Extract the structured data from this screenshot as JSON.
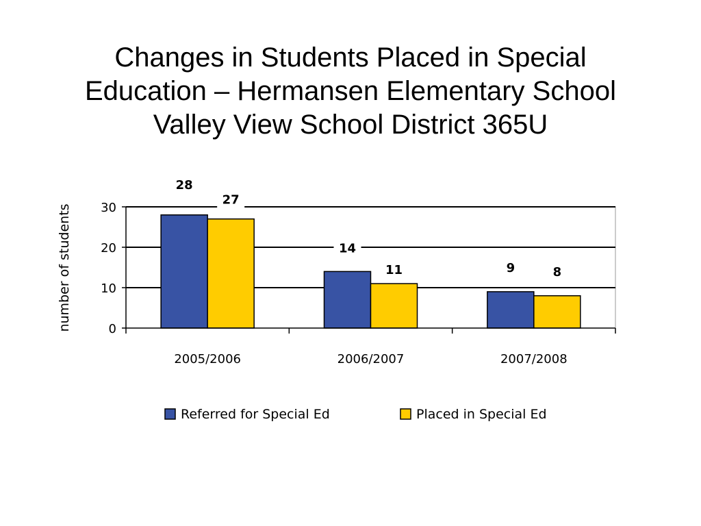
{
  "slide": {
    "title_lines": [
      "Changes in Students Placed in Special",
      "Education – Hermansen Elementary School",
      "Valley View School District 365U"
    ]
  },
  "chart_data": {
    "type": "bar",
    "title": "",
    "xlabel": "",
    "ylabel": "number of students",
    "categories": [
      "2005/2006",
      "2006/2007",
      "2007/2008"
    ],
    "series": [
      {
        "name": "Referred for Special Ed",
        "values": [
          28,
          14,
          9
        ],
        "color": "#3853A4"
      },
      {
        "name": "Placed in Special Ed",
        "values": [
          27,
          11,
          8
        ],
        "color": "#FFCC00"
      }
    ],
    "ylim": [
      0,
      30
    ],
    "yticks": [
      0,
      10,
      20,
      30
    ],
    "grid": true,
    "data_labels": true,
    "legend": "bottom",
    "axis_color": "#000000"
  }
}
